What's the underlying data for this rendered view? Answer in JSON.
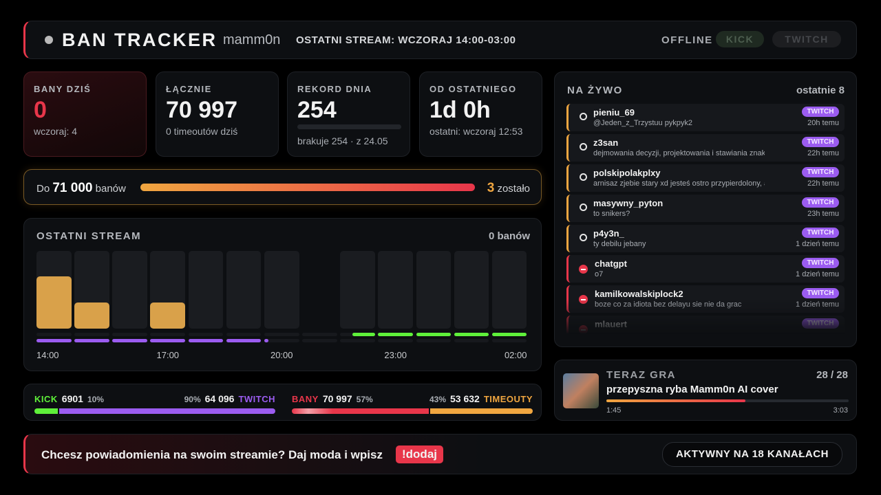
{
  "header": {
    "title": "BAN TRACKER",
    "channel": "mamm0n",
    "last_stream": "OSTATNI STREAM: WCZORAJ 14:00-03:00",
    "status": "OFFLINE",
    "platforms": [
      "KICK",
      "TWITCH"
    ]
  },
  "stats": [
    {
      "label": "BANY DZIŚ",
      "value": "0",
      "sub": "wczoraj: 4"
    },
    {
      "label": "ŁĄCZNIE",
      "value": "70 997",
      "sub": "0 timeoutów dziś"
    },
    {
      "label": "REKORD DNIA",
      "value": "254",
      "sub": "brakuje 254 · z 24.05"
    },
    {
      "label": "OD OSTATNIEGO",
      "value": "1d 0h",
      "sub": "ostatni: wczoraj 12:53"
    }
  ],
  "goal": {
    "prefix": "Do",
    "target": "71 000",
    "unit": "banów",
    "remaining": "3",
    "remaining_label": "zostało"
  },
  "stream": {
    "title": "OSTATNI STREAM",
    "summary": "0 banów",
    "values": [
      2,
      1,
      0,
      1,
      0,
      0,
      0,
      0,
      0,
      0,
      0,
      0,
      0
    ],
    "twitch": [
      1,
      1,
      1,
      1,
      1,
      1,
      0.12,
      0,
      0,
      0,
      0,
      0,
      0
    ],
    "kick": [
      0,
      0,
      0,
      0,
      0,
      0,
      0,
      0,
      0.65,
      1,
      1,
      1,
      1
    ],
    "labels": [
      "14:00",
      null,
      null,
      "17:00",
      null,
      null,
      "20:00",
      null,
      null,
      "23:00",
      null,
      null,
      "02:00"
    ],
    "bar_color": "#d9a14a",
    "twitch_color": "#9b5cf0",
    "kick_color": "#5ff03a"
  },
  "splits": [
    {
      "left": {
        "name": "KICK",
        "count": "6901",
        "share": 10,
        "share_label": "10%",
        "color": "#5ff03a"
      },
      "right": {
        "name": "TWITCH",
        "count": "64 096",
        "share": 90,
        "share_label": "90%",
        "color": "#9b5cf0"
      }
    },
    {
      "left": {
        "name": "BANY",
        "count": "70 997",
        "share": 57,
        "share_label": "57%",
        "color": "#e8364a"
      },
      "right": {
        "name": "TIMEOUTY",
        "count": "53 632",
        "share": 43,
        "share_label": "43%",
        "color": "#f0a640"
      }
    }
  ],
  "live": {
    "title": "NA ŻYWO",
    "summary": "ostatnie 8",
    "items": [
      {
        "user": "pieniu_69",
        "message": "@Jeden_z_Trzystuu pykpyk2",
        "platform": "TWITCH",
        "time": "20h temu",
        "kind": "timeout"
      },
      {
        "user": "z3san",
        "message": "dejmowania decyzji, projektowania i stawiania znaków dr",
        "platform": "TWITCH",
        "time": "22h temu",
        "kind": "timeout"
      },
      {
        "user": "polskipolakplxy",
        "message": "arnisaz zjebie stary xd jesteś ostro przypierdolony, a tera",
        "platform": "TWITCH",
        "time": "22h temu",
        "kind": "timeout"
      },
      {
        "user": "masywny_pyton",
        "message": "to snikers?",
        "platform": "TWITCH",
        "time": "23h temu",
        "kind": "timeout"
      },
      {
        "user": "p4y3n_",
        "message": "ty debilu jebany",
        "platform": "TWITCH",
        "time": "1 dzień temu",
        "kind": "timeout"
      },
      {
        "user": "chatgpt",
        "message": "o7",
        "platform": "TWITCH",
        "time": "1 dzień temu",
        "kind": "ban"
      },
      {
        "user": "kamilkowalskiplock2",
        "message": "boze co za idiota bez delayu sie nie da grac",
        "platform": "TWITCH",
        "time": "1 dzień temu",
        "kind": "ban"
      },
      {
        "user": "mlauert",
        "platform": "TWITCH",
        "kind": "ban"
      }
    ]
  },
  "now_playing": {
    "title": "TERAZ GRA",
    "position": "28 / 28",
    "song": "przepyszna ryba Mamm0n AI cover",
    "elapsed": "1:45",
    "duration": "3:03"
  },
  "footer": {
    "text": "Chcesz powiadomienia na swoim streamie? Daj moda i wpisz",
    "command": "!dodaj",
    "badge": "AKTYWNY NA 18 KANAŁACH"
  }
}
